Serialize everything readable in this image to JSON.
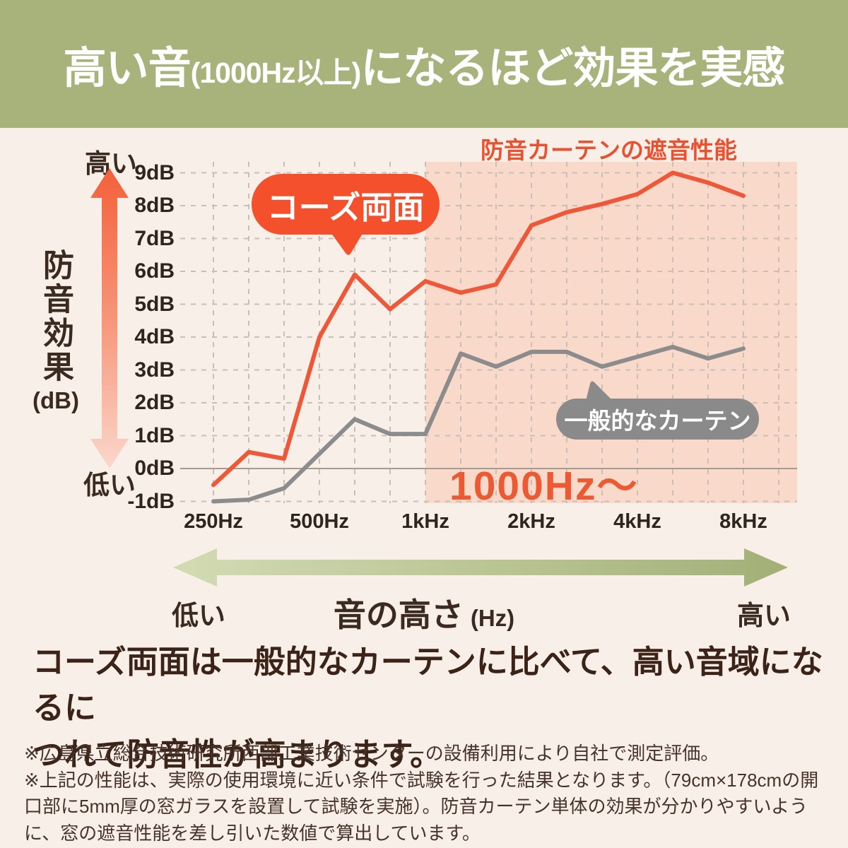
{
  "header": {
    "title_big_1": "高い音",
    "title_small": "(1000Hz以上)",
    "title_big_2": "になるほど効果を実感"
  },
  "chart": {
    "title": "防音カーテンの遮音性能",
    "y_axis": {
      "high_label": "高い",
      "low_label": "低い",
      "name": "防音効果",
      "unit": "(dB)"
    },
    "x_axis": {
      "low_label": "低い",
      "high_label": "高い",
      "name": "音の高さ",
      "unit": "(Hz)"
    },
    "series_labels": {
      "orange": "コーズ両面",
      "gray": "一般的なカーテン"
    }
  },
  "chart_data": {
    "type": "line",
    "title": "防音カーテンの遮音性能",
    "xlabel": "音の高さ (Hz)",
    "ylabel": "防音効果 (dB)",
    "ylim": [
      -1.5,
      9.4
    ],
    "grid": true,
    "x": [
      250,
      315,
      400,
      500,
      630,
      800,
      1000,
      1250,
      1600,
      2000,
      2500,
      3150,
      4000,
      5000,
      6300,
      8000
    ],
    "x_tick_labels": [
      {
        "index": 0,
        "label": "250Hz"
      },
      {
        "index": 3,
        "label": "500Hz"
      },
      {
        "index": 6,
        "label": "1kHz"
      },
      {
        "index": 9,
        "label": "2kHz"
      },
      {
        "index": 12,
        "label": "4kHz"
      },
      {
        "index": 15,
        "label": "8kHz"
      }
    ],
    "y_ticks": [
      {
        "db": 9,
        "label": "9dB"
      },
      {
        "db": 8,
        "label": "8dB"
      },
      {
        "db": 7,
        "label": "7dB"
      },
      {
        "db": 6,
        "label": "6dB"
      },
      {
        "db": 5,
        "label": "5dB"
      },
      {
        "db": 4,
        "label": "4dB"
      },
      {
        "db": 3,
        "label": "3dB"
      },
      {
        "db": 2,
        "label": "2dB"
      },
      {
        "db": 1,
        "label": "1dB"
      },
      {
        "db": 0,
        "label": "0dB"
      },
      {
        "db": -1,
        "label": "-1dB"
      }
    ],
    "series": [
      {
        "name": "コーズ両面",
        "color": "#ee5737",
        "values": [
          -0.5,
          0.5,
          0.3,
          4.0,
          5.9,
          4.85,
          5.7,
          5.35,
          5.6,
          7.4,
          7.8,
          8.05,
          8.35,
          9.0,
          8.7,
          8.3
        ]
      },
      {
        "name": "一般的なカーテン",
        "color": "#8c8c8c",
        "values": [
          -1.0,
          -0.95,
          -0.6,
          0.45,
          1.5,
          1.05,
          1.05,
          3.5,
          3.1,
          3.55,
          3.55,
          3.1,
          3.4,
          3.7,
          3.35,
          3.65
        ]
      }
    ],
    "highlight_region": {
      "from_x": 1000,
      "label": "1000Hz〜"
    },
    "legend_position": "on-chart-bubbles"
  },
  "caption": {
    "lines": [
      "コーズ両面は一般的なカーテンに比べて、高い音域になるに",
      "つれて防音性が高まります。"
    ]
  },
  "footnotes": [
    "※広島県立総合技術研究所西部工業技術センターの設備利用により自社で測定評価。",
    "※上記の性能は、実際の使用環境に近い条件で試験を行った結果となります。（79cm×178cmの開口部に5mm厚の窓ガラスを設置して試験を実施）。防音カーテン単体の効果が分かりやすいように、窓の遮音性能を差し引いた数値で算出しています。"
  ],
  "colors": {
    "header_green": "#a8b27b",
    "background_cream": "#f8efe8",
    "highlight_pink": "#f8d9ca",
    "orange_line": "#ee5737",
    "orange_badge": "#f3502b",
    "title_orange": "#e85231",
    "gray_line": "#8c8c8c",
    "gray_badge": "#8a8a8a",
    "ink": "#3a2a20",
    "grid": "#c9bfb6",
    "zero_axis": "#a59b91",
    "arrow_green_light": "#d3dbb3",
    "arrow_green_dark": "#a2b077",
    "v_arrow_top": "#f3603a",
    "v_arrow_bottom": "#fbd7cc"
  }
}
